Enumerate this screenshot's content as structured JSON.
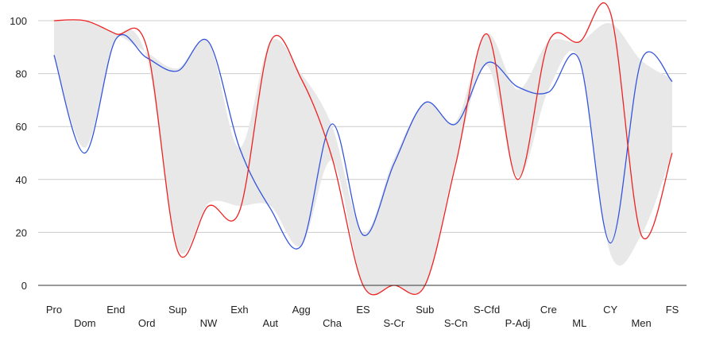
{
  "chart_data": {
    "type": "line",
    "categories": [
      "Pro",
      "Dom",
      "End",
      "Ord",
      "Sup",
      "NW",
      "Exh",
      "Aut",
      "Agg",
      "Cha",
      "ES",
      "S-Cr",
      "Sub",
      "S-Cn",
      "S-Cfd",
      "P-Adj",
      "Cre",
      "ML",
      "CY",
      "Men",
      "FS"
    ],
    "ylim": [
      0,
      100
    ],
    "yticks": [
      0,
      20,
      40,
      60,
      80,
      100
    ],
    "grid": true,
    "legend": "none",
    "series": [
      {
        "color": "#3355dd",
        "values": [
          87,
          50,
          93,
          86,
          81,
          92,
          52,
          29,
          15,
          61,
          19,
          46,
          69,
          61,
          84,
          75,
          73,
          85,
          16,
          85,
          77
        ]
      },
      {
        "color": "#ee2222",
        "values": [
          100,
          100,
          95,
          90,
          13,
          30,
          28,
          92,
          78,
          48,
          0,
          0,
          0,
          46,
          95,
          40,
          92,
          92,
          103,
          19,
          50
        ]
      }
    ],
    "band": {
      "color": "#e8e8e8",
      "upper": [
        100,
        100,
        95,
        88,
        82,
        92,
        52,
        92,
        80,
        60,
        20,
        48,
        69,
        62,
        95,
        74,
        92,
        92,
        99,
        85,
        78
      ],
      "lower": [
        87,
        52,
        93,
        86,
        14,
        31,
        30,
        30,
        15,
        47,
        0,
        0,
        0,
        47,
        83,
        41,
        74,
        85,
        12,
        19,
        50
      ]
    }
  }
}
